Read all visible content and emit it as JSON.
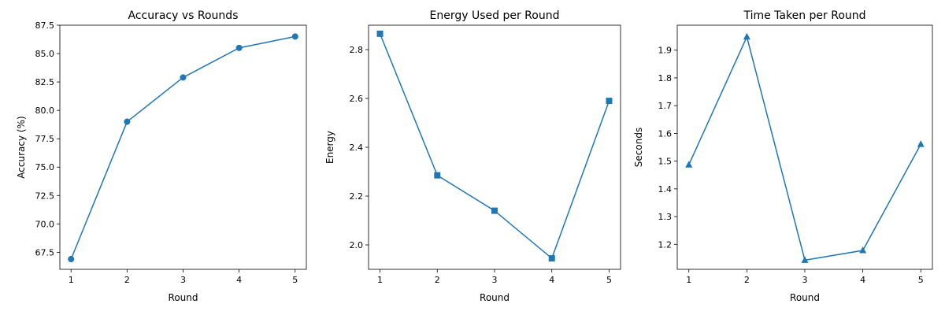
{
  "chart_data": [
    {
      "type": "line",
      "title": "Accuracy vs Rounds",
      "xlabel": "Round",
      "ylabel": "Accuracy (%)",
      "marker": "circle",
      "color": "#1f77b4",
      "x": [
        1,
        2,
        3,
        4,
        5
      ],
      "values": [
        66.9,
        79.0,
        82.9,
        85.5,
        86.5
      ],
      "xlim": [
        0.8,
        5.2
      ],
      "ylim": [
        66.0,
        87.5
      ],
      "xticks": [
        1,
        2,
        3,
        4,
        5
      ],
      "xtick_labels": [
        "1",
        "2",
        "3",
        "4",
        "5"
      ],
      "yticks": [
        67.5,
        70.0,
        72.5,
        75.0,
        77.5,
        80.0,
        82.5,
        85.0,
        87.5
      ],
      "ytick_labels": [
        "67.5",
        "70.0",
        "72.5",
        "75.0",
        "77.5",
        "80.0",
        "82.5",
        "85.0",
        "87.5"
      ]
    },
    {
      "type": "line",
      "title": "Energy Used per Round",
      "xlabel": "Round",
      "ylabel": "Energy",
      "marker": "square",
      "color": "#1f77b4",
      "x": [
        1,
        2,
        3,
        4,
        5
      ],
      "values": [
        2.865,
        2.285,
        2.14,
        1.945,
        2.59
      ],
      "xlim": [
        0.8,
        5.2
      ],
      "ylim": [
        1.9,
        2.9
      ],
      "xticks": [
        1,
        2,
        3,
        4,
        5
      ],
      "xtick_labels": [
        "1",
        "2",
        "3",
        "4",
        "5"
      ],
      "yticks": [
        2.0,
        2.2,
        2.4,
        2.6,
        2.8
      ],
      "ytick_labels": [
        "2.0",
        "2.2",
        "2.4",
        "2.6",
        "2.8"
      ]
    },
    {
      "type": "line",
      "title": "Time Taken per Round",
      "xlabel": "Round",
      "ylabel": "Seconds",
      "marker": "triangle",
      "color": "#1f77b4",
      "x": [
        1,
        2,
        3,
        4,
        5
      ],
      "values": [
        1.487,
        1.948,
        1.143,
        1.178,
        1.561
      ],
      "xlim": [
        0.8,
        5.2
      ],
      "ylim": [
        1.11,
        1.99
      ],
      "xticks": [
        1,
        2,
        3,
        4,
        5
      ],
      "xtick_labels": [
        "1",
        "2",
        "3",
        "4",
        "5"
      ],
      "yticks": [
        1.2,
        1.3,
        1.4,
        1.5,
        1.6,
        1.7,
        1.8,
        1.9
      ],
      "ytick_labels": [
        "1.2",
        "1.3",
        "1.4",
        "1.5",
        "1.6",
        "1.7",
        "1.8",
        "1.9"
      ]
    }
  ]
}
